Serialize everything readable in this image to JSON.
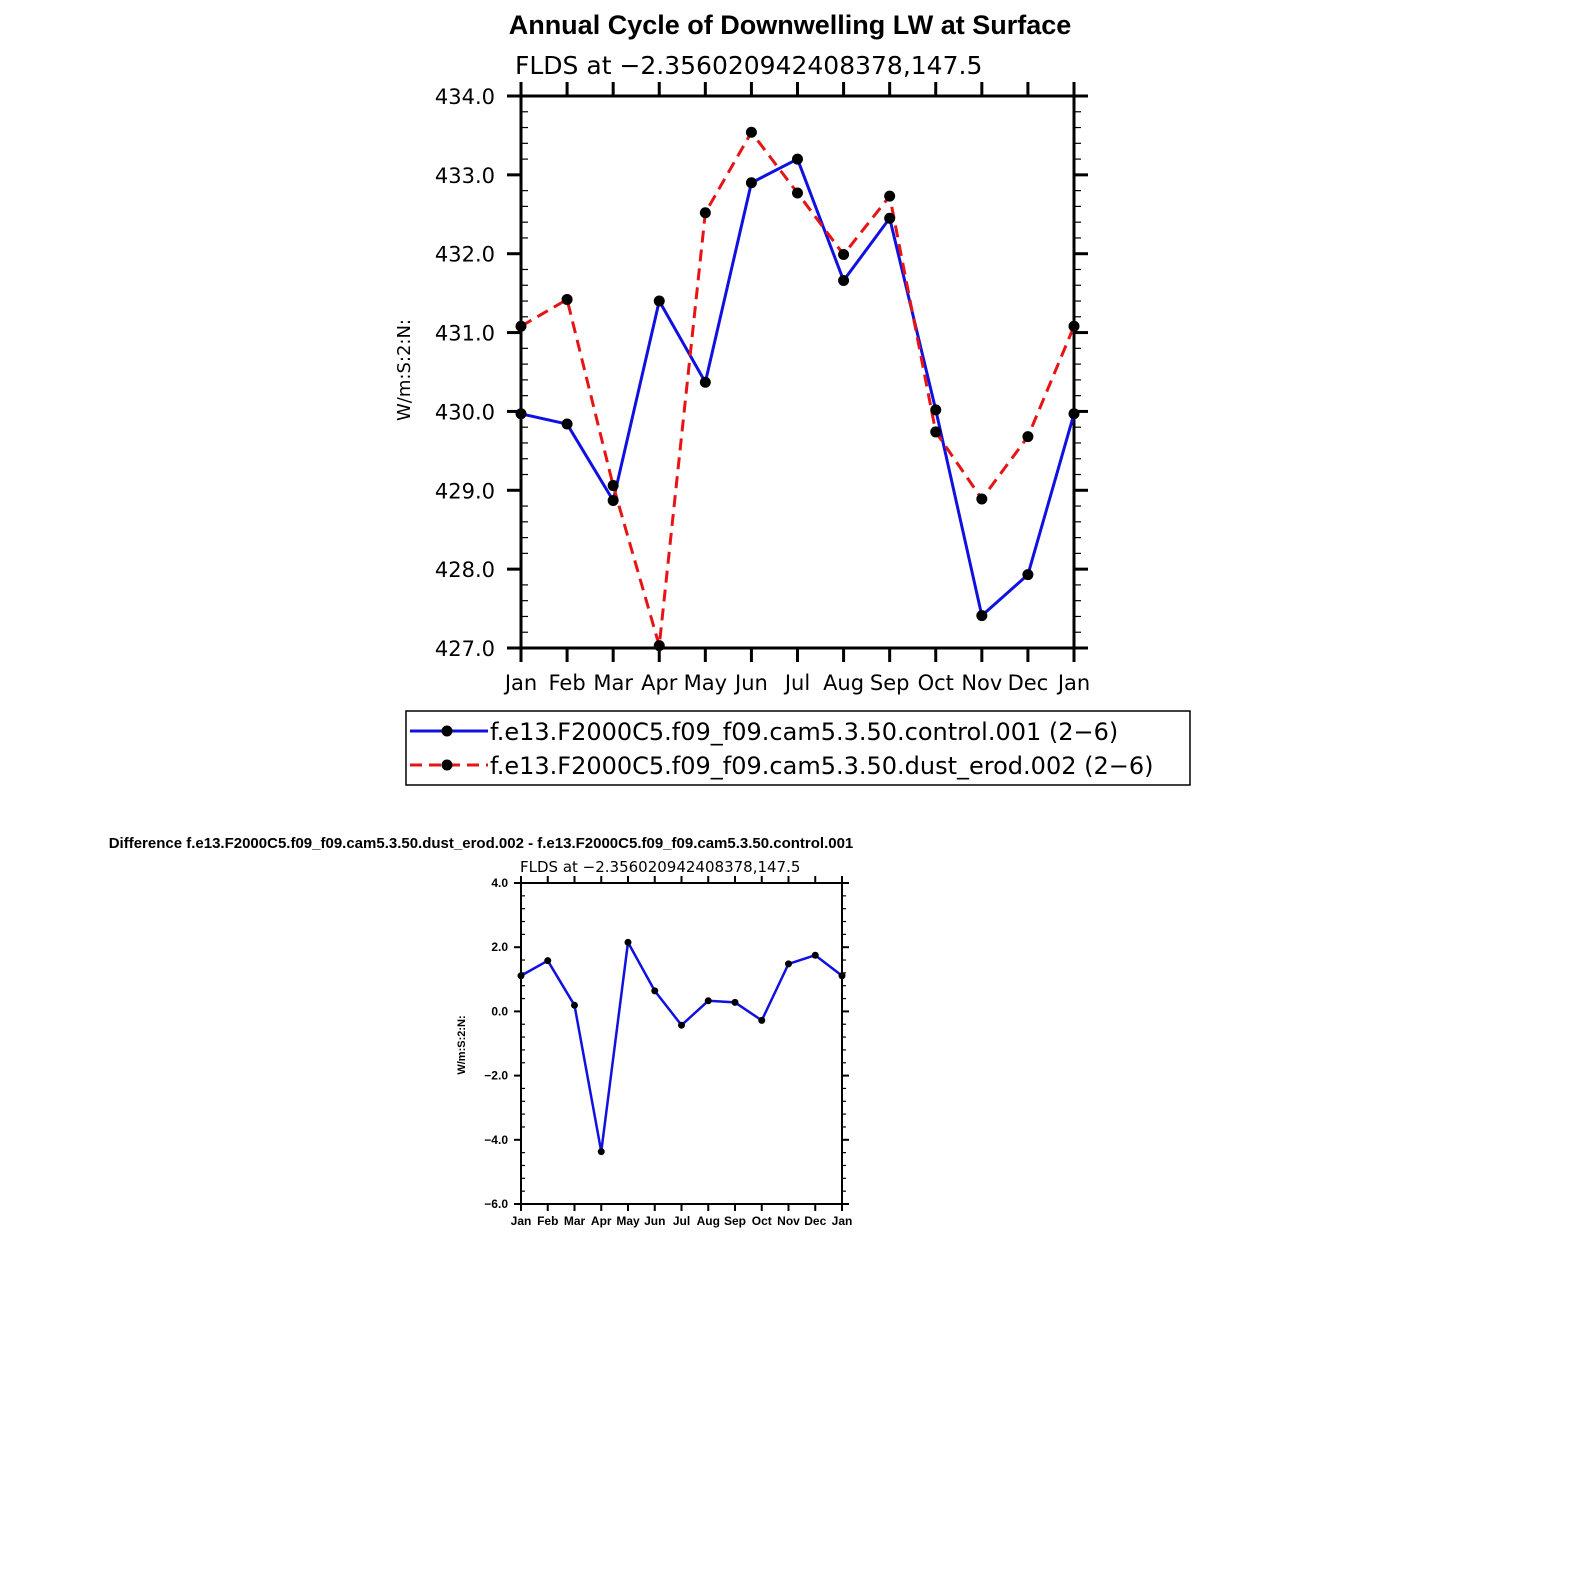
{
  "colors": {
    "control": "#1010e0",
    "dust": "#e61414",
    "marker": "#000000"
  },
  "chart_data": [
    {
      "type": "line",
      "title": "Annual Cycle of Downwelling LW at Surface",
      "subtitle": "FLDS at −2.356020942408378,147.5",
      "ylabel": "W/m:S:2:N:",
      "ylim": [
        427.0,
        434.0
      ],
      "yticks": [
        "427.0",
        "428.0",
        "429.0",
        "430.0",
        "431.0",
        "432.0",
        "433.0",
        "434.0"
      ],
      "categories": [
        "Jan",
        "Feb",
        "Mar",
        "Apr",
        "May",
        "Jun",
        "Jul",
        "Aug",
        "Sep",
        "Oct",
        "Nov",
        "Dec",
        "Jan"
      ],
      "series": [
        {
          "name": "f.e13.F2000C5.f09_f09.cam5.3.50.control.001 (2−6)",
          "style": "solid",
          "color": "#1010e0",
          "values": [
            429.97,
            429.84,
            428.87,
            431.4,
            430.37,
            432.9,
            433.2,
            431.66,
            432.45,
            430.02,
            427.41,
            427.93,
            429.97
          ]
        },
        {
          "name": "f.e13.F2000C5.f09_f09.cam5.3.50.dust_erod.002 (2−6)",
          "style": "dashed",
          "color": "#e61414",
          "values": [
            431.08,
            431.42,
            429.06,
            427.03,
            432.52,
            433.54,
            432.77,
            431.99,
            432.73,
            429.74,
            428.89,
            429.68,
            431.08
          ]
        }
      ],
      "legend": "below"
    },
    {
      "type": "line",
      "title": "Difference f.e13.F2000C5.f09_f09.cam5.3.50.dust_erod.002 - f.e13.F2000C5.f09_f09.cam5.3.50.control.001",
      "subtitle": "FLDS at −2.356020942408378,147.5",
      "ylabel": "W/m:S:2:N:",
      "ylim": [
        -6.0,
        4.0
      ],
      "yticks": [
        "−6.0",
        "−4.0",
        "−2.0",
        "0.0",
        "2.0",
        "4.0"
      ],
      "categories": [
        "Jan",
        "Feb",
        "Mar",
        "Apr",
        "May",
        "Jun",
        "Jul",
        "Aug",
        "Sep",
        "Oct",
        "Nov",
        "Dec",
        "Jan"
      ],
      "series": [
        {
          "style": "solid",
          "color": "#1010e0",
          "values": [
            1.11,
            1.58,
            0.19,
            -4.37,
            2.15,
            0.64,
            -0.43,
            0.33,
            0.28,
            -0.28,
            1.48,
            1.75,
            1.11
          ]
        }
      ]
    }
  ]
}
